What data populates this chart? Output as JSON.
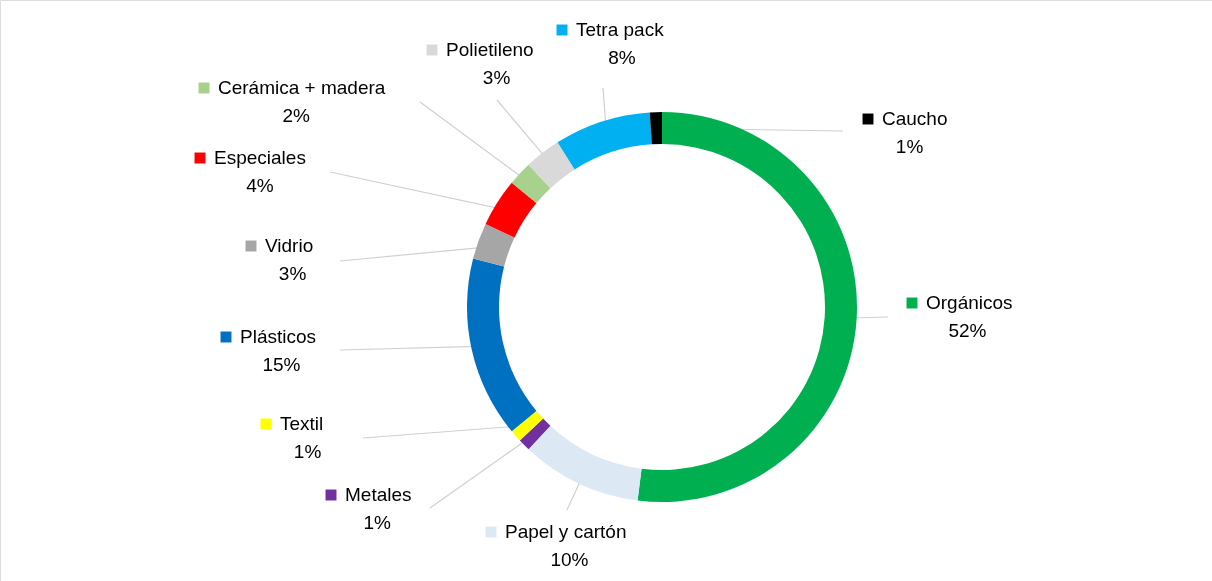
{
  "chart_data": {
    "type": "donut",
    "categories": [
      "Orgánicos",
      "Papel y cartón",
      "Metales",
      "Textil",
      "Plásticos",
      "Vidrio",
      "Especiales",
      "Cerámica + madera",
      "Polietileno",
      "Tetra pack",
      "Caucho"
    ],
    "values": [
      52,
      10,
      1,
      1,
      15,
      3,
      4,
      2,
      3,
      8,
      1
    ],
    "value_labels": [
      "52%",
      "10%",
      "1%",
      "1%",
      "15%",
      "3%",
      "4%",
      "2%",
      "3%",
      "8%",
      "1%"
    ],
    "legend": "left",
    "colors": [
      "#00b050",
      "#dde8f5",
      "#7030a0",
      "#ffff00",
      "#0070c0",
      "#a6a6a6",
      "#ff0000",
      "#a9d18e",
      "#d9d9d9",
      "#00b0f0",
      "#000000"
    ]
  }
}
